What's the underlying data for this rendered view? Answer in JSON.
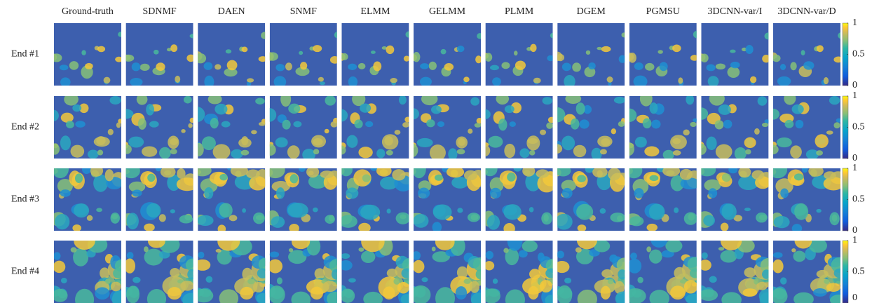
{
  "figure": {
    "columns": [
      "Ground-truth",
      "SDNMF",
      "DAEN",
      "SNMF",
      "ELMM",
      "GELMM",
      "PLMM",
      "DGEM",
      "PGMSU",
      "3DCNN-var/I",
      "3DCNN-var/D"
    ],
    "rows": [
      "End #1",
      "End #2",
      "End #3",
      "End #4"
    ],
    "colorbar": {
      "clim": [
        0,
        1
      ],
      "ticks": [
        0,
        0.5,
        1
      ]
    }
  }
}
